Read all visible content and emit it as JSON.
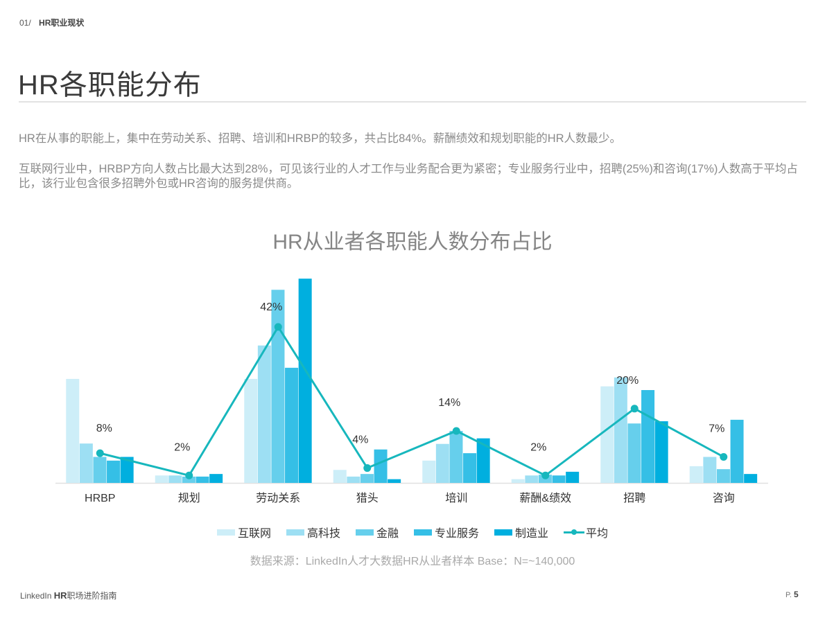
{
  "breadcrumb": {
    "number": "01/",
    "section": "HR职业现状"
  },
  "page_title": "HR各职能分布",
  "paragraphs": [
    "HR在从事的职能上，集中在劳动关系、招聘、培训和HRBP的较多，共占比84%。薪酬绩效和规划职能的HR人数最少。",
    "互联网行业中，HRBP方向人数占比最大达到28%，可见该行业的人才工作与业务配合更为紧密；专业服务行业中，招聘(25%)和咨询(17%)人数高于平均占比，该行业包含很多招聘外包或HR咨询的服务提供商。"
  ],
  "chart_data": {
    "type": "bar",
    "title": "HR从业者各职能人数分布占比",
    "xlabel": "",
    "ylabel": "",
    "ylim": [
      0,
      56
    ],
    "grid": false,
    "legend_position": "bottom",
    "categories": [
      "HRBP",
      "规划",
      "劳动关系",
      "猎头",
      "培训",
      "薪酬&绩效",
      "招聘",
      "咨询"
    ],
    "series": [
      {
        "name": "互联网",
        "type": "bar",
        "color": "#cdeef8",
        "values": [
          28,
          2,
          28,
          3.5,
          6,
          1,
          26,
          4.5
        ]
      },
      {
        "name": "高科技",
        "type": "bar",
        "color": "#9ddff3",
        "values": [
          10.6,
          2,
          37,
          1.7,
          10.5,
          2,
          28.4,
          7
        ]
      },
      {
        "name": "金融",
        "type": "bar",
        "color": "#66cfec",
        "values": [
          7,
          1.7,
          52,
          2.4,
          14,
          2.2,
          16,
          3.7
        ]
      },
      {
        "name": "专业服务",
        "type": "bar",
        "color": "#35bfe6",
        "values": [
          6,
          1.7,
          31,
          9,
          8,
          2,
          25,
          17
        ]
      },
      {
        "name": "制造业",
        "type": "bar",
        "color": "#00afdf",
        "values": [
          7,
          2.4,
          55,
          1,
          12,
          3,
          16.6,
          2.4
        ]
      },
      {
        "name": "平均",
        "type": "line",
        "color": "#17b7bd",
        "values": [
          8,
          2,
          42,
          4,
          14,
          2,
          20,
          7
        ],
        "labels": [
          "8%",
          "2%",
          "42%",
          "4%",
          "14%",
          "2%",
          "20%",
          "7%"
        ]
      }
    ]
  },
  "source_note": "数据来源：LinkedIn人才大数据HR从业者样本  Base：N=~140,000",
  "footer": {
    "brand": "LinkedIn ",
    "brand_bold": "HR",
    "brand_suffix": "职场进阶指南",
    "page_prefix": "P. ",
    "page_number": "5"
  }
}
